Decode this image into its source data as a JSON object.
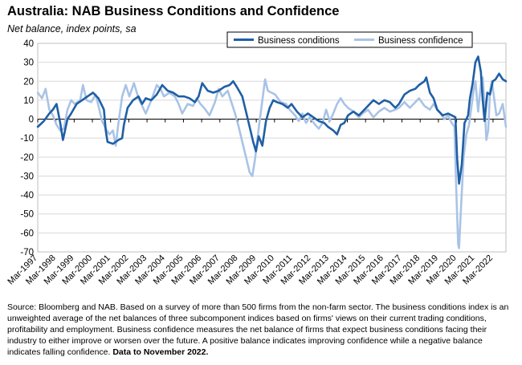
{
  "title": "Australia: NAB Business Conditions and Confidence",
  "subtitle": "Net balance, index points, sa",
  "source_text": "Source: Bloomberg and NAB. Based on a survey of more than 500 firms from the non-farm sector.  The business conditions index is an unweighted average of the net balances of three subcomponent indices based on firms' views on their current trading conditions, profitability and employment.  Business confidence measures the net balance of firms that expect business conditions facing their industry to either improve or worsen over the future.  A positive balance indicates improving confidence while a negative balance indicates falling confidence.",
  "source_bold": "Data to November 2022.",
  "chart_data": {
    "type": "line",
    "title": "Australia: NAB Business Conditions and Confidence",
    "ylabel": "Net balance, index points, sa",
    "ylim": [
      -70,
      40
    ],
    "yticks": [
      -70,
      -60,
      -50,
      -40,
      -30,
      -20,
      -10,
      0,
      10,
      20,
      30,
      40
    ],
    "x_start": 1997.167,
    "x_end": 2022.875,
    "xticks": [
      "Mar-1997",
      "Mar-1998",
      "Mar-1999",
      "Mar-2000",
      "Mar-2001",
      "Mar-2002",
      "Mar-2003",
      "Mar-2004",
      "Mar-2005",
      "Mar-2006",
      "Mar-2007",
      "Mar-2008",
      "Mar-2009",
      "Mar-2010",
      "Mar-2011",
      "Mar-2012",
      "Mar-2013",
      "Mar-2014",
      "Mar-2015",
      "Mar-2016",
      "Mar-2017",
      "Mar-2018",
      "Mar-2019",
      "Mar-2020",
      "Mar-2021",
      "Mar-2022"
    ],
    "legend_position": "top-right",
    "series": [
      {
        "name": "Business conditions",
        "color": "#1f5fa5",
        "points": [
          [
            1997.17,
            -4
          ],
          [
            1997.5,
            -1
          ],
          [
            1997.8,
            3
          ],
          [
            1998.0,
            5
          ],
          [
            1998.2,
            8
          ],
          [
            1998.4,
            -2
          ],
          [
            1998.55,
            -11
          ],
          [
            1998.8,
            0
          ],
          [
            1999.0,
            3
          ],
          [
            1999.3,
            8
          ],
          [
            1999.6,
            10
          ],
          [
            1999.9,
            12
          ],
          [
            2000.2,
            14
          ],
          [
            2000.5,
            11
          ],
          [
            2000.8,
            5
          ],
          [
            2000.9,
            -6
          ],
          [
            2001.0,
            -12
          ],
          [
            2001.3,
            -13
          ],
          [
            2001.6,
            -11
          ],
          [
            2001.8,
            -10
          ],
          [
            2001.9,
            -3
          ],
          [
            2002.1,
            6
          ],
          [
            2002.4,
            10
          ],
          [
            2002.7,
            12
          ],
          [
            2002.9,
            8
          ],
          [
            2003.1,
            11
          ],
          [
            2003.4,
            10
          ],
          [
            2003.7,
            13
          ],
          [
            2004.0,
            18
          ],
          [
            2004.3,
            15
          ],
          [
            2004.6,
            14
          ],
          [
            2004.9,
            12
          ],
          [
            2005.2,
            12
          ],
          [
            2005.5,
            11
          ],
          [
            2005.8,
            9
          ],
          [
            2006.0,
            12
          ],
          [
            2006.2,
            19
          ],
          [
            2006.5,
            15
          ],
          [
            2006.8,
            14
          ],
          [
            2007.1,
            15
          ],
          [
            2007.4,
            17
          ],
          [
            2007.7,
            18
          ],
          [
            2007.9,
            20
          ],
          [
            2008.1,
            17
          ],
          [
            2008.4,
            12
          ],
          [
            2008.6,
            4
          ],
          [
            2008.8,
            -4
          ],
          [
            2009.0,
            -12
          ],
          [
            2009.15,
            -17
          ],
          [
            2009.3,
            -9
          ],
          [
            2009.5,
            -14
          ],
          [
            2009.7,
            -1
          ],
          [
            2009.9,
            6
          ],
          [
            2010.1,
            10
          ],
          [
            2010.3,
            9
          ],
          [
            2010.6,
            8
          ],
          [
            2010.9,
            6
          ],
          [
            2011.1,
            8
          ],
          [
            2011.4,
            4
          ],
          [
            2011.7,
            1
          ],
          [
            2012.0,
            3
          ],
          [
            2012.3,
            1
          ],
          [
            2012.6,
            -1
          ],
          [
            2012.9,
            -2
          ],
          [
            2013.1,
            -4
          ],
          [
            2013.4,
            -6
          ],
          [
            2013.6,
            -8
          ],
          [
            2013.8,
            -3
          ],
          [
            2014.0,
            -2
          ],
          [
            2014.2,
            2
          ],
          [
            2014.5,
            4
          ],
          [
            2014.8,
            2
          ],
          [
            2015.0,
            4
          ],
          [
            2015.3,
            7
          ],
          [
            2015.6,
            10
          ],
          [
            2015.9,
            8
          ],
          [
            2016.2,
            10
          ],
          [
            2016.5,
            9
          ],
          [
            2016.8,
            6
          ],
          [
            2017.0,
            8
          ],
          [
            2017.3,
            13
          ],
          [
            2017.6,
            15
          ],
          [
            2017.9,
            16
          ],
          [
            2018.1,
            18
          ],
          [
            2018.4,
            20
          ],
          [
            2018.5,
            22
          ],
          [
            2018.7,
            14
          ],
          [
            2018.9,
            11
          ],
          [
            2019.1,
            5
          ],
          [
            2019.4,
            2
          ],
          [
            2019.7,
            3
          ],
          [
            2019.9,
            2
          ],
          [
            2020.1,
            1
          ],
          [
            2020.2,
            -21
          ],
          [
            2020.3,
            -34
          ],
          [
            2020.45,
            -24
          ],
          [
            2020.6,
            -2
          ],
          [
            2020.8,
            2
          ],
          [
            2020.9,
            11
          ],
          [
            2021.05,
            19
          ],
          [
            2021.2,
            30
          ],
          [
            2021.35,
            33
          ],
          [
            2021.5,
            25
          ],
          [
            2021.6,
            10
          ],
          [
            2021.7,
            -1
          ],
          [
            2021.85,
            14
          ],
          [
            2022.0,
            13
          ],
          [
            2022.15,
            20
          ],
          [
            2022.3,
            21
          ],
          [
            2022.5,
            24
          ],
          [
            2022.7,
            21
          ],
          [
            2022.875,
            20
          ]
        ]
      },
      {
        "name": "Business confidence",
        "color": "#a9c3e6",
        "points": [
          [
            1997.17,
            14
          ],
          [
            1997.4,
            11
          ],
          [
            1997.6,
            16
          ],
          [
            1997.8,
            5
          ],
          [
            1998.0,
            2
          ],
          [
            1998.2,
            -3
          ],
          [
            1998.4,
            -6
          ],
          [
            1998.6,
            -5
          ],
          [
            1998.8,
            5
          ],
          [
            1999.0,
            10
          ],
          [
            1999.2,
            8
          ],
          [
            1999.5,
            10
          ],
          [
            1999.65,
            18
          ],
          [
            1999.85,
            10
          ],
          [
            2000.1,
            9
          ],
          [
            2000.35,
            13
          ],
          [
            2000.5,
            7
          ],
          [
            2000.7,
            -1
          ],
          [
            2000.9,
            -5
          ],
          [
            2001.1,
            -8
          ],
          [
            2001.3,
            -6
          ],
          [
            2001.45,
            -14
          ],
          [
            2001.6,
            -2
          ],
          [
            2001.8,
            12
          ],
          [
            2002.0,
            18
          ],
          [
            2002.2,
            12
          ],
          [
            2002.45,
            19
          ],
          [
            2002.7,
            11
          ],
          [
            2002.9,
            7
          ],
          [
            2003.1,
            3
          ],
          [
            2003.4,
            10
          ],
          [
            2003.7,
            18
          ],
          [
            2003.9,
            16
          ],
          [
            2004.1,
            12
          ],
          [
            2004.4,
            14
          ],
          [
            2004.7,
            12
          ],
          [
            2004.9,
            8
          ],
          [
            2005.1,
            3
          ],
          [
            2005.4,
            8
          ],
          [
            2005.7,
            7
          ],
          [
            2005.9,
            11
          ],
          [
            2006.1,
            8
          ],
          [
            2006.3,
            6
          ],
          [
            2006.6,
            2
          ],
          [
            2006.9,
            9
          ],
          [
            2007.1,
            16
          ],
          [
            2007.3,
            12
          ],
          [
            2007.6,
            15
          ],
          [
            2007.8,
            9
          ],
          [
            2008.0,
            3
          ],
          [
            2008.2,
            -4
          ],
          [
            2008.4,
            -12
          ],
          [
            2008.6,
            -20
          ],
          [
            2008.8,
            -28
          ],
          [
            2008.95,
            -30
          ],
          [
            2009.1,
            -21
          ],
          [
            2009.3,
            -5
          ],
          [
            2009.5,
            10
          ],
          [
            2009.65,
            21
          ],
          [
            2009.8,
            15
          ],
          [
            2010.0,
            14
          ],
          [
            2010.2,
            13
          ],
          [
            2010.5,
            9
          ],
          [
            2010.8,
            8
          ],
          [
            2011.0,
            5
          ],
          [
            2011.3,
            2
          ],
          [
            2011.5,
            -1
          ],
          [
            2011.7,
            3
          ],
          [
            2011.9,
            -2
          ],
          [
            2012.1,
            1
          ],
          [
            2012.4,
            -3
          ],
          [
            2012.6,
            -5
          ],
          [
            2012.8,
            -2
          ],
          [
            2013.0,
            5
          ],
          [
            2013.2,
            -1
          ],
          [
            2013.35,
            2
          ],
          [
            2013.6,
            8
          ],
          [
            2013.8,
            11
          ],
          [
            2014.0,
            8
          ],
          [
            2014.2,
            6
          ],
          [
            2014.5,
            4
          ],
          [
            2014.8,
            1
          ],
          [
            2015.0,
            3
          ],
          [
            2015.3,
            5
          ],
          [
            2015.6,
            1
          ],
          [
            2015.9,
            4
          ],
          [
            2016.2,
            6
          ],
          [
            2016.5,
            4
          ],
          [
            2016.8,
            5
          ],
          [
            2017.0,
            6
          ],
          [
            2017.3,
            9
          ],
          [
            2017.6,
            6
          ],
          [
            2017.9,
            9
          ],
          [
            2018.1,
            11
          ],
          [
            2018.4,
            7
          ],
          [
            2018.7,
            5
          ],
          [
            2018.9,
            8
          ],
          [
            2019.1,
            5
          ],
          [
            2019.3,
            3
          ],
          [
            2019.5,
            0
          ],
          [
            2019.7,
            2
          ],
          [
            2019.9,
            -2
          ],
          [
            2020.05,
            -4
          ],
          [
            2020.15,
            -38
          ],
          [
            2020.25,
            -66
          ],
          [
            2020.3,
            -68
          ],
          [
            2020.4,
            -48
          ],
          [
            2020.55,
            -20
          ],
          [
            2020.7,
            -8
          ],
          [
            2020.85,
            -3
          ],
          [
            2021.0,
            8
          ],
          [
            2021.1,
            15
          ],
          [
            2021.2,
            20
          ],
          [
            2021.35,
            4
          ],
          [
            2021.5,
            18
          ],
          [
            2021.6,
            22
          ],
          [
            2021.7,
            8
          ],
          [
            2021.8,
            -11
          ],
          [
            2021.9,
            -6
          ],
          [
            2022.0,
            15
          ],
          [
            2022.1,
            20
          ],
          [
            2022.2,
            13
          ],
          [
            2022.35,
            2
          ],
          [
            2022.5,
            3
          ],
          [
            2022.7,
            8
          ],
          [
            2022.875,
            -4
          ]
        ]
      }
    ]
  }
}
